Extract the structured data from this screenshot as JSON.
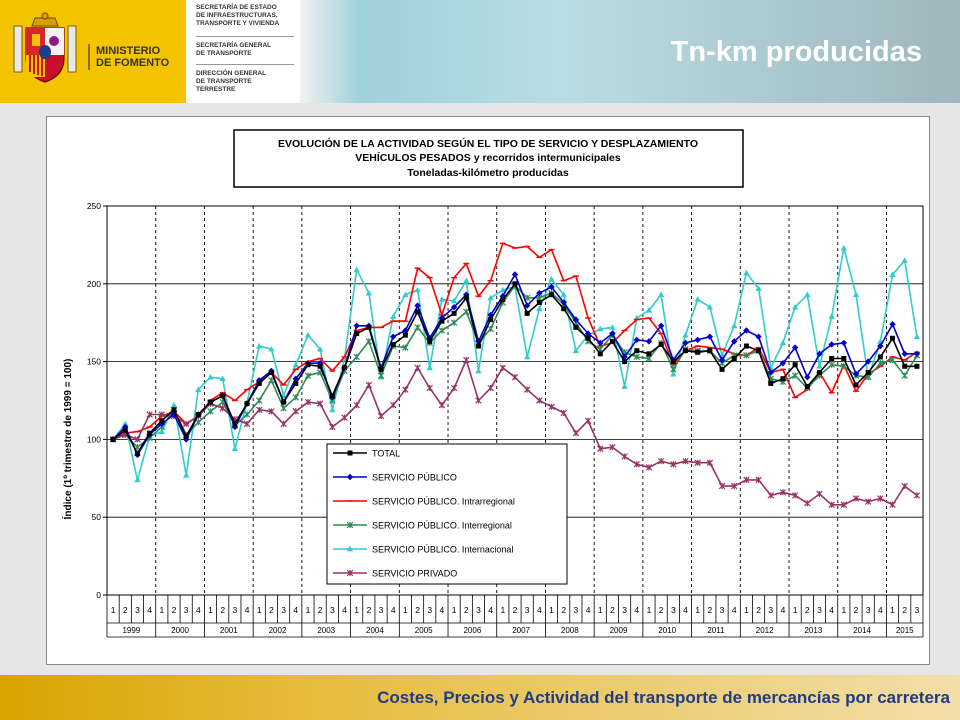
{
  "header": {
    "title": "Tn-km producidas",
    "ministry": [
      "MINISTERIO",
      "DE FOMENTO"
    ],
    "org_1": [
      "SECRETARÍA DE ESTADO",
      "DE INFRAESTRUCTURAS,",
      "TRANSPORTE Y VIVIENDA"
    ],
    "org_2": [
      "SECRETARÍA GENERAL",
      "DE TRANSPORTE"
    ],
    "org_3": [
      "DIRECCIÓN GENERAL",
      "DE TRANSPORTE",
      "TERRESTRE"
    ],
    "colors": {
      "logo_bg": "#f5c400",
      "title": "#ffffff"
    }
  },
  "footer": {
    "text": "Costes, Precios y Actividad del transporte de mercancías por carretera"
  },
  "chart_data": {
    "type": "line",
    "title": [
      "EVOLUCIÓN DE LA ACTIVIDAD SEGÚN EL TIPO DE SERVICIO Y DESPLAZAMIENTO",
      "VEHÍCULOS PESADOS y recorridos intermunicipales",
      "Toneladas-kilómetro producidas"
    ],
    "ylabel": "Índice (1º trimestre de 1999 = 100)",
    "ylim": [
      0,
      250
    ],
    "yticks": [
      0,
      50,
      100,
      150,
      200,
      250
    ],
    "grid": "dashed vertical at year boundaries, solid horizontal",
    "legend_placement": "bottom-center",
    "quarters": [
      "1",
      "2",
      "3",
      "4",
      "1",
      "2",
      "3",
      "4",
      "1",
      "2",
      "3",
      "4",
      "1",
      "2",
      "3",
      "4",
      "1",
      "2",
      "3",
      "4",
      "1",
      "2",
      "3",
      "4",
      "1",
      "2",
      "3",
      "4",
      "1",
      "2",
      "3",
      "4",
      "1",
      "2",
      "3",
      "4",
      "1",
      "2",
      "3",
      "4",
      "1",
      "2",
      "3",
      "4",
      "1",
      "2",
      "3",
      "4",
      "1",
      "2",
      "3",
      "4",
      "1",
      "2",
      "3",
      "4",
      "1",
      "2",
      "3",
      "4",
      "1",
      "2",
      "3",
      "4",
      "1",
      "2",
      "3"
    ],
    "years": [
      "1999",
      "2000",
      "2001",
      "2002",
      "2003",
      "2004",
      "2005",
      "2006",
      "2007",
      "2008",
      "2009",
      "2010",
      "2011",
      "2012",
      "2013",
      "2014",
      "2015"
    ],
    "series": [
      {
        "name": "TOTAL",
        "color": "#000000",
        "marker": "square",
        "values": [
          100,
          106,
          91,
          104,
          112,
          119,
          102,
          116,
          124,
          128,
          110,
          123,
          136,
          143,
          124,
          136,
          148,
          147,
          128,
          146,
          168,
          172,
          145,
          161,
          167,
          182,
          163,
          176,
          181,
          191,
          160,
          177,
          190,
          200,
          181,
          188,
          193,
          184,
          172,
          165,
          155,
          163,
          150,
          157,
          155,
          161,
          150,
          157,
          156,
          157,
          145,
          152,
          160,
          157,
          136,
          139,
          148,
          134,
          143,
          152,
          152,
          135,
          143,
          153,
          165,
          147,
          147
        ]
      },
      {
        "name": "SERVICIO PÚBLICO",
        "color": "#0000cc",
        "marker": "diamond",
        "values": [
          100,
          108,
          90,
          103,
          110,
          116,
          100,
          116,
          124,
          128,
          108,
          123,
          138,
          144,
          124,
          139,
          149,
          149,
          127,
          146,
          173,
          173,
          146,
          166,
          170,
          186,
          165,
          178,
          185,
          193,
          163,
          180,
          192,
          206,
          186,
          194,
          198,
          188,
          177,
          168,
          162,
          168,
          153,
          164,
          163,
          173,
          151,
          162,
          164,
          166,
          151,
          163,
          170,
          166,
          143,
          149,
          159,
          140,
          155,
          161,
          162,
          142,
          150,
          160,
          174,
          155,
          155
        ]
      },
      {
        "name": "SERVICIO PÚBLICO. Intrarregional",
        "color": "#ff0000",
        "marker": "line",
        "values": [
          100,
          104,
          105,
          108,
          115,
          118,
          110,
          115,
          125,
          130,
          125,
          132,
          137,
          143,
          135,
          145,
          150,
          152,
          144,
          153,
          170,
          172,
          172,
          176,
          176,
          210,
          204,
          180,
          204,
          213,
          192,
          202,
          226,
          223,
          224,
          217,
          222,
          202,
          205,
          178,
          160,
          162,
          170,
          177,
          178,
          168,
          148,
          157,
          160,
          159,
          158,
          155,
          154,
          159,
          143,
          145,
          127,
          132,
          143,
          130,
          148,
          131,
          142,
          147,
          153,
          151,
          156
        ]
      },
      {
        "name": "SERVICIO PÚBLICO. Interregional",
        "color": "#2e8b57",
        "marker": "star",
        "values": [
          100,
          103,
          95,
          101,
          108,
          119,
          103,
          111,
          118,
          124,
          109,
          116,
          125,
          138,
          120,
          127,
          141,
          143,
          125,
          144,
          153,
          163,
          141,
          160,
          159,
          172,
          162,
          170,
          175,
          182,
          162,
          171,
          188,
          199,
          191,
          191,
          194,
          187,
          175,
          163,
          158,
          167,
          156,
          153,
          152,
          162,
          145,
          158,
          157,
          157,
          149,
          154,
          154,
          157,
          139,
          137,
          141,
          133,
          141,
          148,
          147,
          141,
          140,
          149,
          151,
          141,
          154
        ]
      },
      {
        "name": "SERVICIO PÚBLICO. Internacional",
        "color": "#33cccc",
        "marker": "triangle",
        "values": [
          100,
          110,
          74,
          102,
          105,
          122,
          77,
          132,
          140,
          139,
          94,
          124,
          160,
          158,
          128,
          148,
          167,
          158,
          119,
          152,
          209,
          194,
          140,
          179,
          193,
          196,
          146,
          190,
          189,
          202,
          144,
          191,
          196,
          198,
          153,
          184,
          203,
          193,
          157,
          167,
          171,
          172,
          134,
          178,
          183,
          193,
          142,
          167,
          190,
          185,
          154,
          173,
          207,
          197,
          146,
          162,
          185,
          193,
          147,
          179,
          223,
          193,
          140,
          163,
          206,
          215,
          166
        ]
      },
      {
        "name": "SERVICIO PRIVADO",
        "color": "#993366",
        "marker": "star",
        "values": [
          100,
          103,
          100,
          116,
          116,
          115,
          110,
          115,
          123,
          120,
          113,
          110,
          119,
          118,
          110,
          118,
          124,
          123,
          108,
          114,
          122,
          135,
          115,
          122,
          132,
          146,
          133,
          122,
          133,
          151,
          125,
          133,
          146,
          140,
          132,
          125,
          121,
          117,
          104,
          112,
          94,
          95,
          89,
          84,
          82,
          86,
          84,
          86,
          85,
          85,
          70,
          70,
          74,
          74,
          64,
          66,
          64,
          59,
          65,
          58,
          58,
          62,
          60,
          62,
          58,
          70,
          64
        ]
      }
    ]
  }
}
